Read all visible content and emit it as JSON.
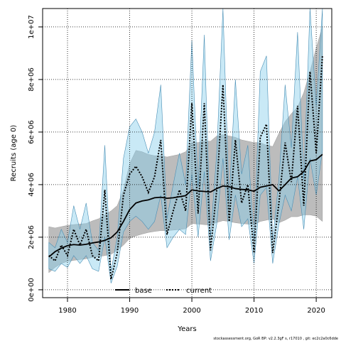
{
  "chart_data": {
    "type": "line",
    "title": "",
    "xlabel": "Years",
    "ylabel": "Recruits (age 0)",
    "xlim": [
      1976,
      2022.5
    ],
    "ylim": [
      -300000,
      10700000
    ],
    "x_ticks": [
      1980,
      1990,
      2000,
      2010,
      2020
    ],
    "x_tick_labels": [
      "1980",
      "1990",
      "2000",
      "2010",
      "2020"
    ],
    "y_ticks": [
      0,
      2000000,
      4000000,
      6000000,
      8000000,
      10000000
    ],
    "y_tick_labels": [
      "0e+00",
      "2e+06",
      "4e+06",
      "6e+06",
      "8e+06",
      "1e+07"
    ],
    "grid": true,
    "legend": {
      "position": "bottom",
      "entries": [
        "base",
        "current"
      ]
    },
    "colors": {
      "base_line": "#000000",
      "base_band": "#b5b5b5",
      "current_line": "#000000",
      "current_band": "#87ceeb"
    },
    "series": [
      {
        "name": "base",
        "style": "solid",
        "x": [
          1977,
          1978,
          1979,
          1980,
          1981,
          1982,
          1983,
          1984,
          1985,
          1986,
          1987,
          1988,
          1989,
          1990,
          1991,
          1992,
          1993,
          1994,
          1995,
          1996,
          1997,
          1998,
          1999,
          2000,
          2001,
          2002,
          2003,
          2004,
          2005,
          2006,
          2007,
          2008,
          2009,
          2010,
          2011,
          2012,
          2013,
          2014,
          2015,
          2016,
          2017,
          2018,
          2019,
          2020,
          2021
        ],
        "values": [
          1250000,
          1450000,
          1580000,
          1680000,
          1720000,
          1700000,
          1730000,
          1780000,
          1820000,
          1880000,
          1980000,
          2200000,
          2600000,
          3050000,
          3300000,
          3380000,
          3420000,
          3500000,
          3520000,
          3480000,
          3500000,
          3540000,
          3580000,
          3800000,
          3760000,
          3740000,
          3720000,
          3850000,
          3950000,
          3920000,
          3850000,
          3820000,
          3800000,
          3750000,
          3900000,
          3950000,
          4000000,
          3760000,
          4000000,
          4250000,
          4300000,
          4500000,
          4900000,
          4950000,
          5150000
        ],
        "lower": [
          650000,
          850000,
          1000000,
          1080000,
          1120000,
          1150000,
          1180000,
          1230000,
          1260000,
          1300000,
          1350000,
          1500000,
          1700000,
          1950000,
          2050000,
          2120000,
          2180000,
          2220000,
          2250000,
          2250000,
          2270000,
          2290000,
          2320000,
          2520000,
          2500000,
          2480000,
          2460000,
          2560000,
          2630000,
          2600000,
          2550000,
          2520000,
          2500000,
          2480000,
          2600000,
          2650000,
          2700000,
          2550000,
          2650000,
          2780000,
          2780000,
          2850000,
          2850000,
          2800000,
          2600000
        ],
        "upper": [
          2400000,
          2350000,
          2400000,
          2450000,
          2480000,
          2500000,
          2520000,
          2620000,
          2700000,
          2850000,
          3000000,
          3200000,
          3800000,
          4800000,
          5300000,
          5250000,
          5150000,
          5100000,
          5100000,
          5050000,
          5100000,
          5150000,
          5250000,
          5600000,
          5600000,
          5650000,
          5650000,
          5850000,
          5900000,
          5850000,
          5800000,
          5700000,
          5650000,
          5600000,
          5600000,
          5500000,
          5450000,
          5950000,
          6400000,
          6700000,
          6950000,
          7500000,
          8300000,
          9200000,
          10000000
        ]
      },
      {
        "name": "current",
        "style": "dotted",
        "x": [
          1977,
          1978,
          1979,
          1980,
          1981,
          1982,
          1983,
          1984,
          1985,
          1986,
          1987,
          1988,
          1989,
          1990,
          1991,
          1992,
          1993,
          1994,
          1995,
          1996,
          1997,
          1998,
          1999,
          2000,
          2001,
          2002,
          2003,
          2004,
          2005,
          2006,
          2007,
          2008,
          2009,
          2010,
          2011,
          2012,
          2013,
          2014,
          2015,
          2016,
          2017,
          2018,
          2019,
          2020,
          2021
        ],
        "values": [
          1300000,
          1100000,
          1700000,
          1300000,
          2300000,
          1700000,
          2300000,
          1300000,
          1100000,
          3800000,
          400000,
          1400000,
          3600000,
          4400000,
          4700000,
          4300000,
          3700000,
          4300000,
          5700000,
          2100000,
          3000000,
          3800000,
          3000000,
          7100000,
          2900000,
          7100000,
          1500000,
          3800000,
          7800000,
          2600000,
          5700000,
          3300000,
          4000000,
          1400000,
          5800000,
          6300000,
          1400000,
          3300000,
          5600000,
          4100000,
          7000000,
          3200000,
          8300000,
          5200000,
          8900000
        ],
        "lower": [
          800000,
          700000,
          1000000,
          850000,
          1300000,
          1000000,
          1300000,
          800000,
          700000,
          2000000,
          250000,
          900000,
          2200000,
          2600000,
          2800000,
          2600000,
          2300000,
          2600000,
          3600000,
          1600000,
          2000000,
          2300000,
          2100000,
          4400000,
          2000000,
          4500000,
          1100000,
          2500000,
          5000000,
          1900000,
          3600000,
          2400000,
          2700000,
          1000000,
          3600000,
          3900000,
          1000000,
          2500000,
          3600000,
          3000000,
          4300000,
          2300000,
          5000000,
          3600000,
          5300000
        ],
        "upper": [
          1800000,
          1600000,
          2300000,
          1800000,
          3200000,
          2300000,
          3300000,
          1800000,
          1500000,
          5500000,
          700000,
          2000000,
          5000000,
          6200000,
          6500000,
          6000000,
          5200000,
          6000000,
          7800000,
          2700000,
          4000000,
          5200000,
          4000000,
          9500000,
          3900000,
          9700000,
          2000000,
          5200000,
          10700000,
          3400000,
          8000000,
          4400000,
          5500000,
          1900000,
          8300000,
          8900000,
          1900000,
          4200000,
          7800000,
          5400000,
          9800000,
          4200000,
          10700000,
          7000000,
          10700000
        ]
      }
    ],
    "credit": "stockassessment.org, GoR BP: v2.2.3gF s, r17010 , git: ec2c2a0c6dde"
  }
}
